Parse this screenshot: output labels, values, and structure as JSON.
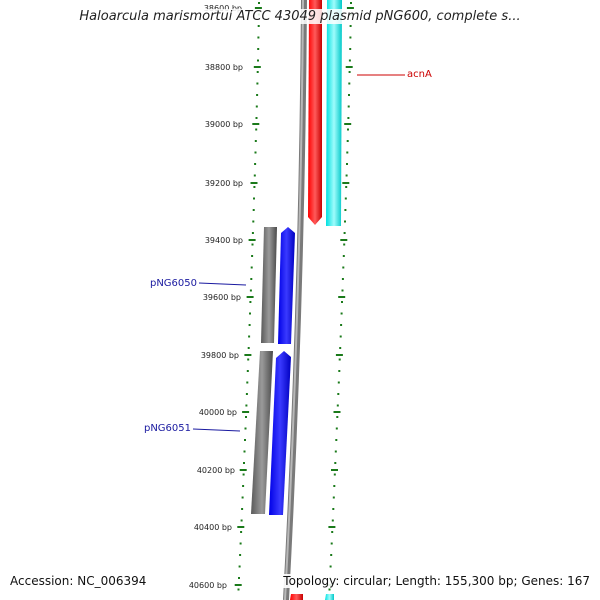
{
  "title": "Haloarcula marismortui ATCC 43049 plasmid pNG600, complete s...",
  "footer": {
    "accession": "Accession: NC_006394",
    "summary": "Topology: circular; Length: 155,300 bp; Genes: 167"
  },
  "ruler": {
    "labels": [
      "38600 bp",
      "38800 bp",
      "39000 bp",
      "39200 bp",
      "39400 bp",
      "39600 bp",
      "39800 bp",
      "40000 bp",
      "40200 bp",
      "40400 bp",
      "40600 bp"
    ]
  },
  "genes": [
    {
      "label": "acnA",
      "strand": "reverse",
      "color": "#ff0000",
      "partner_color": "#00e5e5"
    },
    {
      "label": "pNG6050",
      "strand": "forward",
      "color": "#0000ff",
      "partner_color": "#777777"
    },
    {
      "label": "pNG6051",
      "strand": "forward",
      "color": "#0000ff",
      "partner_color": "#777777"
    }
  ],
  "colors": {
    "tick": "#1a7a1a",
    "backbone": "#8a8a8a",
    "label_red": "#cc0000",
    "label_blue": "#1a1aa0"
  }
}
